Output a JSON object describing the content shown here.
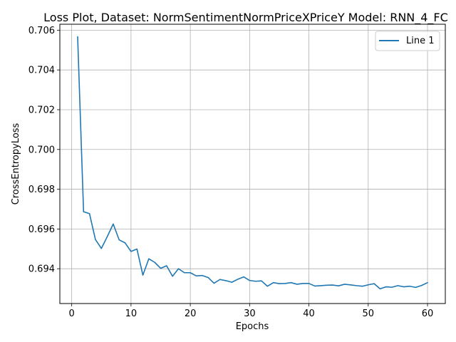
{
  "chart_data": {
    "type": "line",
    "title": "Loss Plot, Dataset: NormSentimentNormPriceXPriceY Model: RNN_4_FC",
    "xlabel": "Epochs",
    "ylabel": "CrossEntropyLoss",
    "xlim": [
      -2,
      63
    ],
    "ylim": [
      0.69225,
      0.7063
    ],
    "xticks": [
      0,
      10,
      20,
      30,
      40,
      50,
      60
    ],
    "yticks": [
      0.694,
      0.696,
      0.698,
      0.7,
      0.702,
      0.704,
      0.706
    ],
    "ytick_labels": [
      "0.694",
      "0.696",
      "0.698",
      "0.700",
      "0.702",
      "0.704",
      "0.706"
    ],
    "grid": true,
    "legend_position": "top-right",
    "series_color": "#1f77b4",
    "series": [
      {
        "name": "Line 1",
        "x": [
          1,
          2,
          3,
          4,
          5,
          6,
          7,
          8,
          9,
          10,
          11,
          12,
          13,
          14,
          15,
          16,
          17,
          18,
          19,
          20,
          21,
          22,
          23,
          24,
          25,
          26,
          27,
          28,
          29,
          30,
          31,
          32,
          33,
          34,
          35,
          36,
          37,
          38,
          39,
          40,
          41,
          42,
          43,
          44,
          45,
          46,
          47,
          48,
          49,
          50,
          51,
          52,
          53,
          54,
          55,
          56,
          57,
          58,
          59,
          60
        ],
        "values": [
          0.70567,
          0.69687,
          0.69677,
          0.69547,
          0.69502,
          0.69562,
          0.69625,
          0.69545,
          0.6953,
          0.69487,
          0.69499,
          0.69368,
          0.6945,
          0.69432,
          0.69402,
          0.69415,
          0.69362,
          0.694,
          0.6938,
          0.6938,
          0.69364,
          0.69366,
          0.69356,
          0.69327,
          0.69346,
          0.6934,
          0.69332,
          0.69347,
          0.69359,
          0.69341,
          0.69337,
          0.69339,
          0.69312,
          0.6933,
          0.69325,
          0.69326,
          0.6933,
          0.69322,
          0.69326,
          0.69326,
          0.69313,
          0.69315,
          0.69317,
          0.69318,
          0.69314,
          0.69322,
          0.69319,
          0.69315,
          0.69312,
          0.69319,
          0.69325,
          0.69299,
          0.69309,
          0.69307,
          0.69315,
          0.69309,
          0.69312,
          0.69306,
          0.69316,
          0.6933
        ]
      }
    ]
  }
}
